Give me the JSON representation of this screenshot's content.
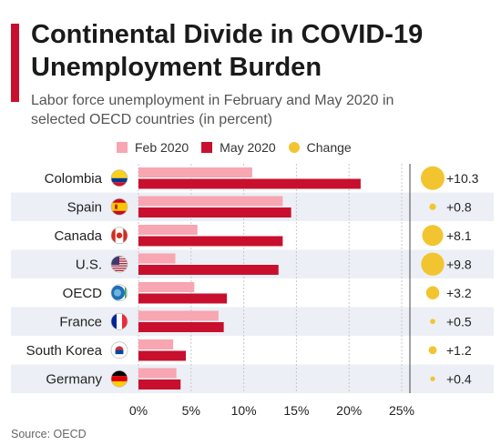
{
  "header": {
    "title_line1": "Continental Divide in COVID-19",
    "title_line2": "Unemployment Burden",
    "subtitle_line1": "Labor force unemployment in February and May 2020 in",
    "subtitle_line2": "selected OECD countries (in percent)"
  },
  "legend": {
    "feb": "Feb 2020",
    "may": "May 2020",
    "change": "Change"
  },
  "colors": {
    "accent": "#c8102e",
    "feb": "#f7a6b2",
    "may": "#c8102e",
    "change": "#f2c530",
    "row_alt": "#eceff5"
  },
  "source": "Source: OECD",
  "chart_data": {
    "type": "bar",
    "orientation": "horizontal",
    "categories": [
      "Colombia",
      "Spain",
      "Canada",
      "U.S.",
      "OECD",
      "France",
      "South Korea",
      "Germany"
    ],
    "flag_icons": [
      "colombia-flag-icon",
      "spain-flag-icon",
      "canada-flag-icon",
      "us-flag-icon",
      "oecd-logo-icon",
      "france-flag-icon",
      "south-korea-flag-icon",
      "germany-flag-icon"
    ],
    "series": [
      {
        "name": "Feb 2020",
        "values": [
          10.8,
          13.7,
          5.6,
          3.5,
          5.3,
          7.6,
          3.3,
          3.6
        ]
      },
      {
        "name": "May 2020",
        "values": [
          21.1,
          14.5,
          13.7,
          13.3,
          8.4,
          8.1,
          4.5,
          4.0
        ]
      }
    ],
    "change": {
      "name": "Change",
      "values": [
        10.3,
        0.8,
        8.1,
        9.8,
        3.2,
        0.5,
        1.2,
        0.4
      ],
      "labels": [
        "+10.3",
        "+0.8",
        "+8.1",
        "+9.8",
        "+3.2",
        "+0.5",
        "+1.2",
        "+0.4"
      ]
    },
    "xlim": [
      0,
      25
    ],
    "xticks": [
      0,
      5,
      10,
      15,
      20,
      25
    ],
    "xtick_labels": [
      "0%",
      "5%",
      "10%",
      "15%",
      "20%",
      "25%"
    ],
    "grid": true,
    "legend_position": "top"
  }
}
